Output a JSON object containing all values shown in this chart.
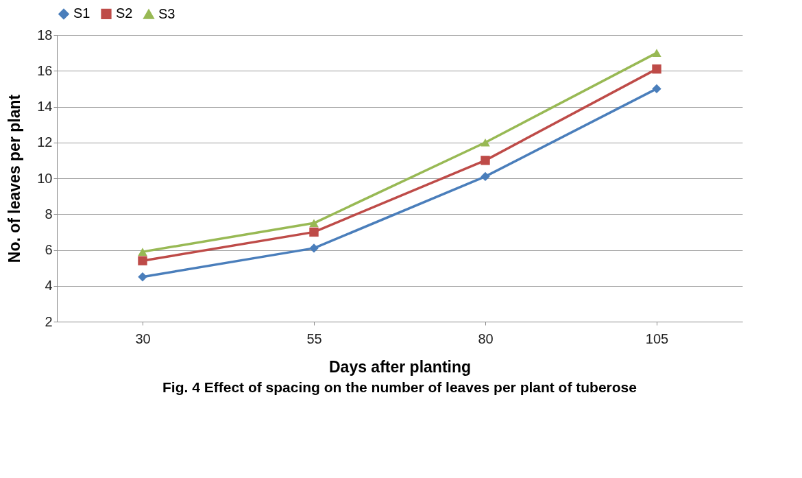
{
  "chart_data": {
    "type": "line",
    "xlabel": "Days after planting",
    "ylabel": "No. of leaves per plant",
    "annotations": [
      "Fig. 4  Effect of spacing on the number of leaves per plant of tuberose"
    ],
    "categories": [
      "30",
      "55",
      "80",
      "105"
    ],
    "series": [
      {
        "name": "S1",
        "color": "#4a7ebb",
        "marker": "diamond",
        "values": [
          4.5,
          6.1,
          10.1,
          15.0
        ]
      },
      {
        "name": "S2",
        "color": "#be4b48",
        "marker": "square",
        "values": [
          5.4,
          7.0,
          11.0,
          16.1
        ]
      },
      {
        "name": "S3",
        "color": "#98b954",
        "marker": "triangle",
        "values": [
          5.9,
          7.5,
          12.0,
          17.0
        ]
      }
    ],
    "ylim": [
      2,
      18
    ],
    "yticks": [
      2,
      4,
      6,
      8,
      10,
      12,
      14,
      16,
      18
    ],
    "grid": "y",
    "legend": "top"
  }
}
